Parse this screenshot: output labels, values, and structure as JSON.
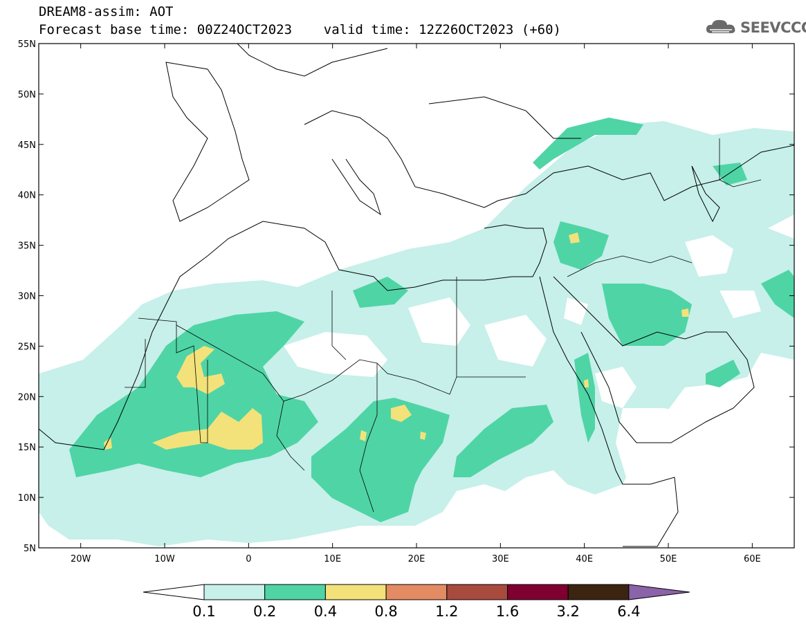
{
  "header": {
    "line1": "DREAM8-assim: AOT",
    "line2": "Forecast base time: 00Z24OCT2023    valid time: 12Z26OCT2023 (+60)"
  },
  "logo": {
    "text": "SEEVCCC",
    "icon": "cloud-icon"
  },
  "map": {
    "lon_range": [
      -25,
      65
    ],
    "lat_range": [
      5,
      55
    ],
    "lat_ticks": [
      {
        "value": 55,
        "label": "55N"
      },
      {
        "value": 50,
        "label": "50N"
      },
      {
        "value": 45,
        "label": "45N"
      },
      {
        "value": 40,
        "label": "40N"
      },
      {
        "value": 35,
        "label": "35N"
      },
      {
        "value": 30,
        "label": "30N"
      },
      {
        "value": 25,
        "label": "25N"
      },
      {
        "value": 20,
        "label": "20N"
      },
      {
        "value": 15,
        "label": "15N"
      },
      {
        "value": 10,
        "label": "10N"
      },
      {
        "value": 5,
        "label": "5N"
      }
    ],
    "lon_ticks": [
      {
        "value": -20,
        "label": "20W"
      },
      {
        "value": -10,
        "label": "10W"
      },
      {
        "value": 0,
        "label": "0"
      },
      {
        "value": 10,
        "label": "10E"
      },
      {
        "value": 20,
        "label": "20E"
      },
      {
        "value": 30,
        "label": "30E"
      },
      {
        "value": 40,
        "label": "40E"
      },
      {
        "value": 50,
        "label": "50E"
      },
      {
        "value": 60,
        "label": "60E"
      }
    ]
  },
  "colorbar": {
    "labels": [
      "0.1",
      "0.2",
      "0.4",
      "0.8",
      "1.2",
      "1.6",
      "3.2",
      "6.4"
    ],
    "colors": [
      "#c6f0e9",
      "#4fd4a6",
      "#f3e27a",
      "#e38b62",
      "#a94a3e",
      "#7f0030",
      "#3b2411"
    ],
    "below_color": "#ffffff",
    "above_color": "#8a63a8"
  }
}
